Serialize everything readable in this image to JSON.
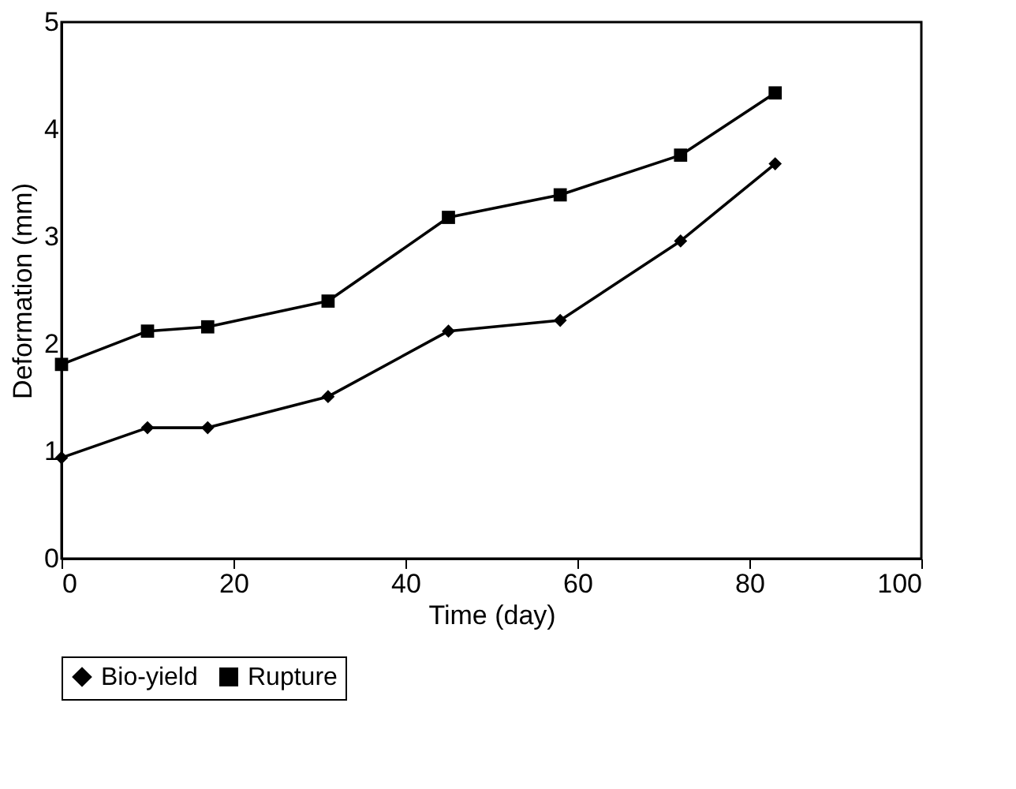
{
  "chart_data": {
    "type": "line",
    "xlabel": "Time (day)",
    "ylabel": "Deformation (mm)",
    "x": [
      0,
      10,
      17,
      31,
      45,
      58,
      72,
      83
    ],
    "series": [
      {
        "name": "Bio-yield",
        "color": "#000000",
        "marker": "diamond",
        "values": [
          0.94,
          1.22,
          1.22,
          1.51,
          2.12,
          2.22,
          2.96,
          3.68
        ]
      },
      {
        "name": "Rupture",
        "color": "#000000",
        "marker": "square",
        "values": [
          1.81,
          2.12,
          2.16,
          2.4,
          3.18,
          3.39,
          3.76,
          4.34
        ]
      }
    ],
    "xlim": [
      0,
      100
    ],
    "xticks": [
      0,
      20,
      40,
      60,
      80,
      100
    ],
    "ylim": [
      0,
      5
    ],
    "yticks": [
      0,
      1,
      2,
      3,
      4,
      5
    ],
    "grid": false,
    "legend": "bottom",
    "line_style": "solid"
  }
}
